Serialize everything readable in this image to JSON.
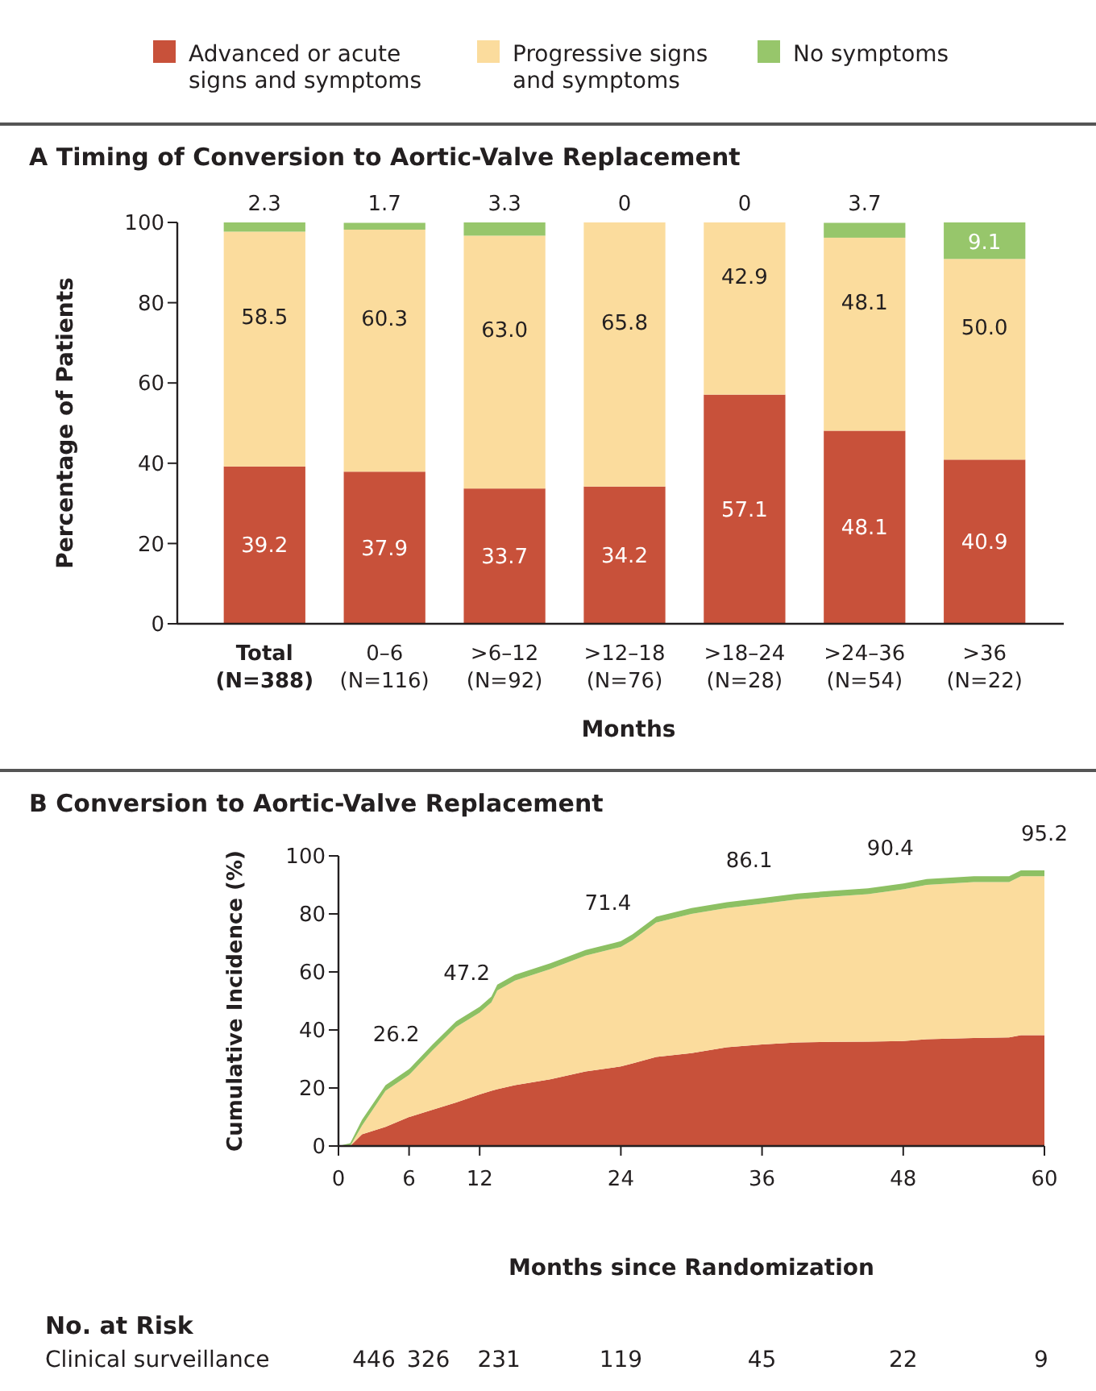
{
  "chart_data": [
    {
      "type": "bar",
      "title": "A  Timing of Conversion to Aortic-Valve Replacement",
      "xlabel": "Months",
      "ylabel": "Percentage of Patients",
      "categories": [
        "Total (N=388)",
        "0–6 (N=116)",
        ">6–12 (N=92)",
        ">12–18 (N=76)",
        ">18–24 (N=28)",
        ">24–36 (N=54)",
        ">36 (N=22)"
      ],
      "stacked": true,
      "legend": "top",
      "ylim": [
        0,
        100
      ],
      "yticks": [
        0,
        20,
        40,
        60,
        80,
        100
      ],
      "series": [
        {
          "name": "Advanced or acute signs and symptoms",
          "color": "#c8513a",
          "values": [
            39.2,
            37.9,
            33.7,
            34.2,
            57.1,
            48.1,
            40.9
          ],
          "value_labels": [
            "39.2",
            "37.9",
            "33.7",
            "34.2",
            "57.1",
            "48.1",
            "40.9"
          ]
        },
        {
          "name": "Progressive signs and symptoms",
          "color": "#fbdc9d",
          "values": [
            58.5,
            60.3,
            63.0,
            65.8,
            42.9,
            48.1,
            50.0
          ],
          "value_labels": [
            "58.5",
            "60.3",
            "63.0",
            "65.8",
            "42.9",
            "48.1",
            "50.0"
          ]
        },
        {
          "name": "No symptoms",
          "color": "#97c66b",
          "values": [
            2.3,
            1.7,
            3.3,
            0,
            0,
            3.7,
            9.1
          ],
          "value_labels": [
            "2.3",
            "1.7",
            "3.3",
            "0",
            "0",
            "3.7",
            "9.1"
          ]
        }
      ]
    },
    {
      "type": "area",
      "title": "B  Conversion to Aortic-Valve Replacement",
      "xlabel": "Months since Randomization",
      "ylabel": "Cumulative Incidence (%)",
      "stacked": true,
      "xlim": [
        0,
        60
      ],
      "xticks": [
        0,
        6,
        12,
        24,
        36,
        48,
        60
      ],
      "ylim": [
        0,
        100
      ],
      "yticks": [
        0,
        20,
        40,
        60,
        80,
        100
      ],
      "x": [
        0,
        1,
        2,
        4,
        6,
        8,
        10,
        12,
        13,
        13.5,
        15,
        18,
        21,
        24,
        25,
        27,
        30,
        33,
        36,
        39,
        42,
        45,
        48,
        50,
        54,
        57,
        58,
        60
      ],
      "series": [
        {
          "color": "#c8513a",
          "values": [
            0,
            0,
            4,
            6.6,
            10,
            12.5,
            15,
            17.8,
            19,
            19.6,
            21,
            23,
            25.7,
            27.4,
            28.5,
            30.7,
            32,
            34,
            35,
            35.7,
            35.9,
            36,
            36.2,
            36.8,
            37.2,
            37.4,
            38.2,
            38.2
          ]
        },
        {
          "color": "#fbdc9d",
          "values": [
            0,
            0,
            3,
            12.4,
            14.5,
            20.5,
            26,
            28.2,
            30.5,
            34,
            36,
            38,
            39.9,
            41.2,
            42.5,
            46.3,
            48,
            48,
            48.5,
            49.3,
            50.1,
            50.8,
            52.3,
            53.2,
            53.8,
            53.6,
            54.8,
            54.8
          ]
        },
        {
          "color": "#8dc063",
          "values": [
            0,
            1,
            2,
            2,
            2,
            2,
            2,
            2,
            2,
            2,
            2,
            2,
            2,
            2,
            2,
            2,
            2,
            2,
            2,
            2,
            2,
            2,
            2,
            2,
            2,
            2,
            2,
            2
          ]
        }
      ],
      "annotations": [
        {
          "text": "26.2",
          "x": 6,
          "y": 26.2
        },
        {
          "text": "47.2",
          "x": 12,
          "y": 47.2
        },
        {
          "text": "71.4",
          "x": 24,
          "y": 71.4
        },
        {
          "text": "86.1",
          "x": 36,
          "y": 86.1
        },
        {
          "text": "90.4",
          "x": 48,
          "y": 90.4
        },
        {
          "text": "95.2",
          "x": 60,
          "y": 95.2
        },
        "No. at Risk",
        "Clinical surveillance",
        "446",
        "326",
        "231",
        "119",
        "45",
        "22",
        "9"
      ]
    }
  ]
}
